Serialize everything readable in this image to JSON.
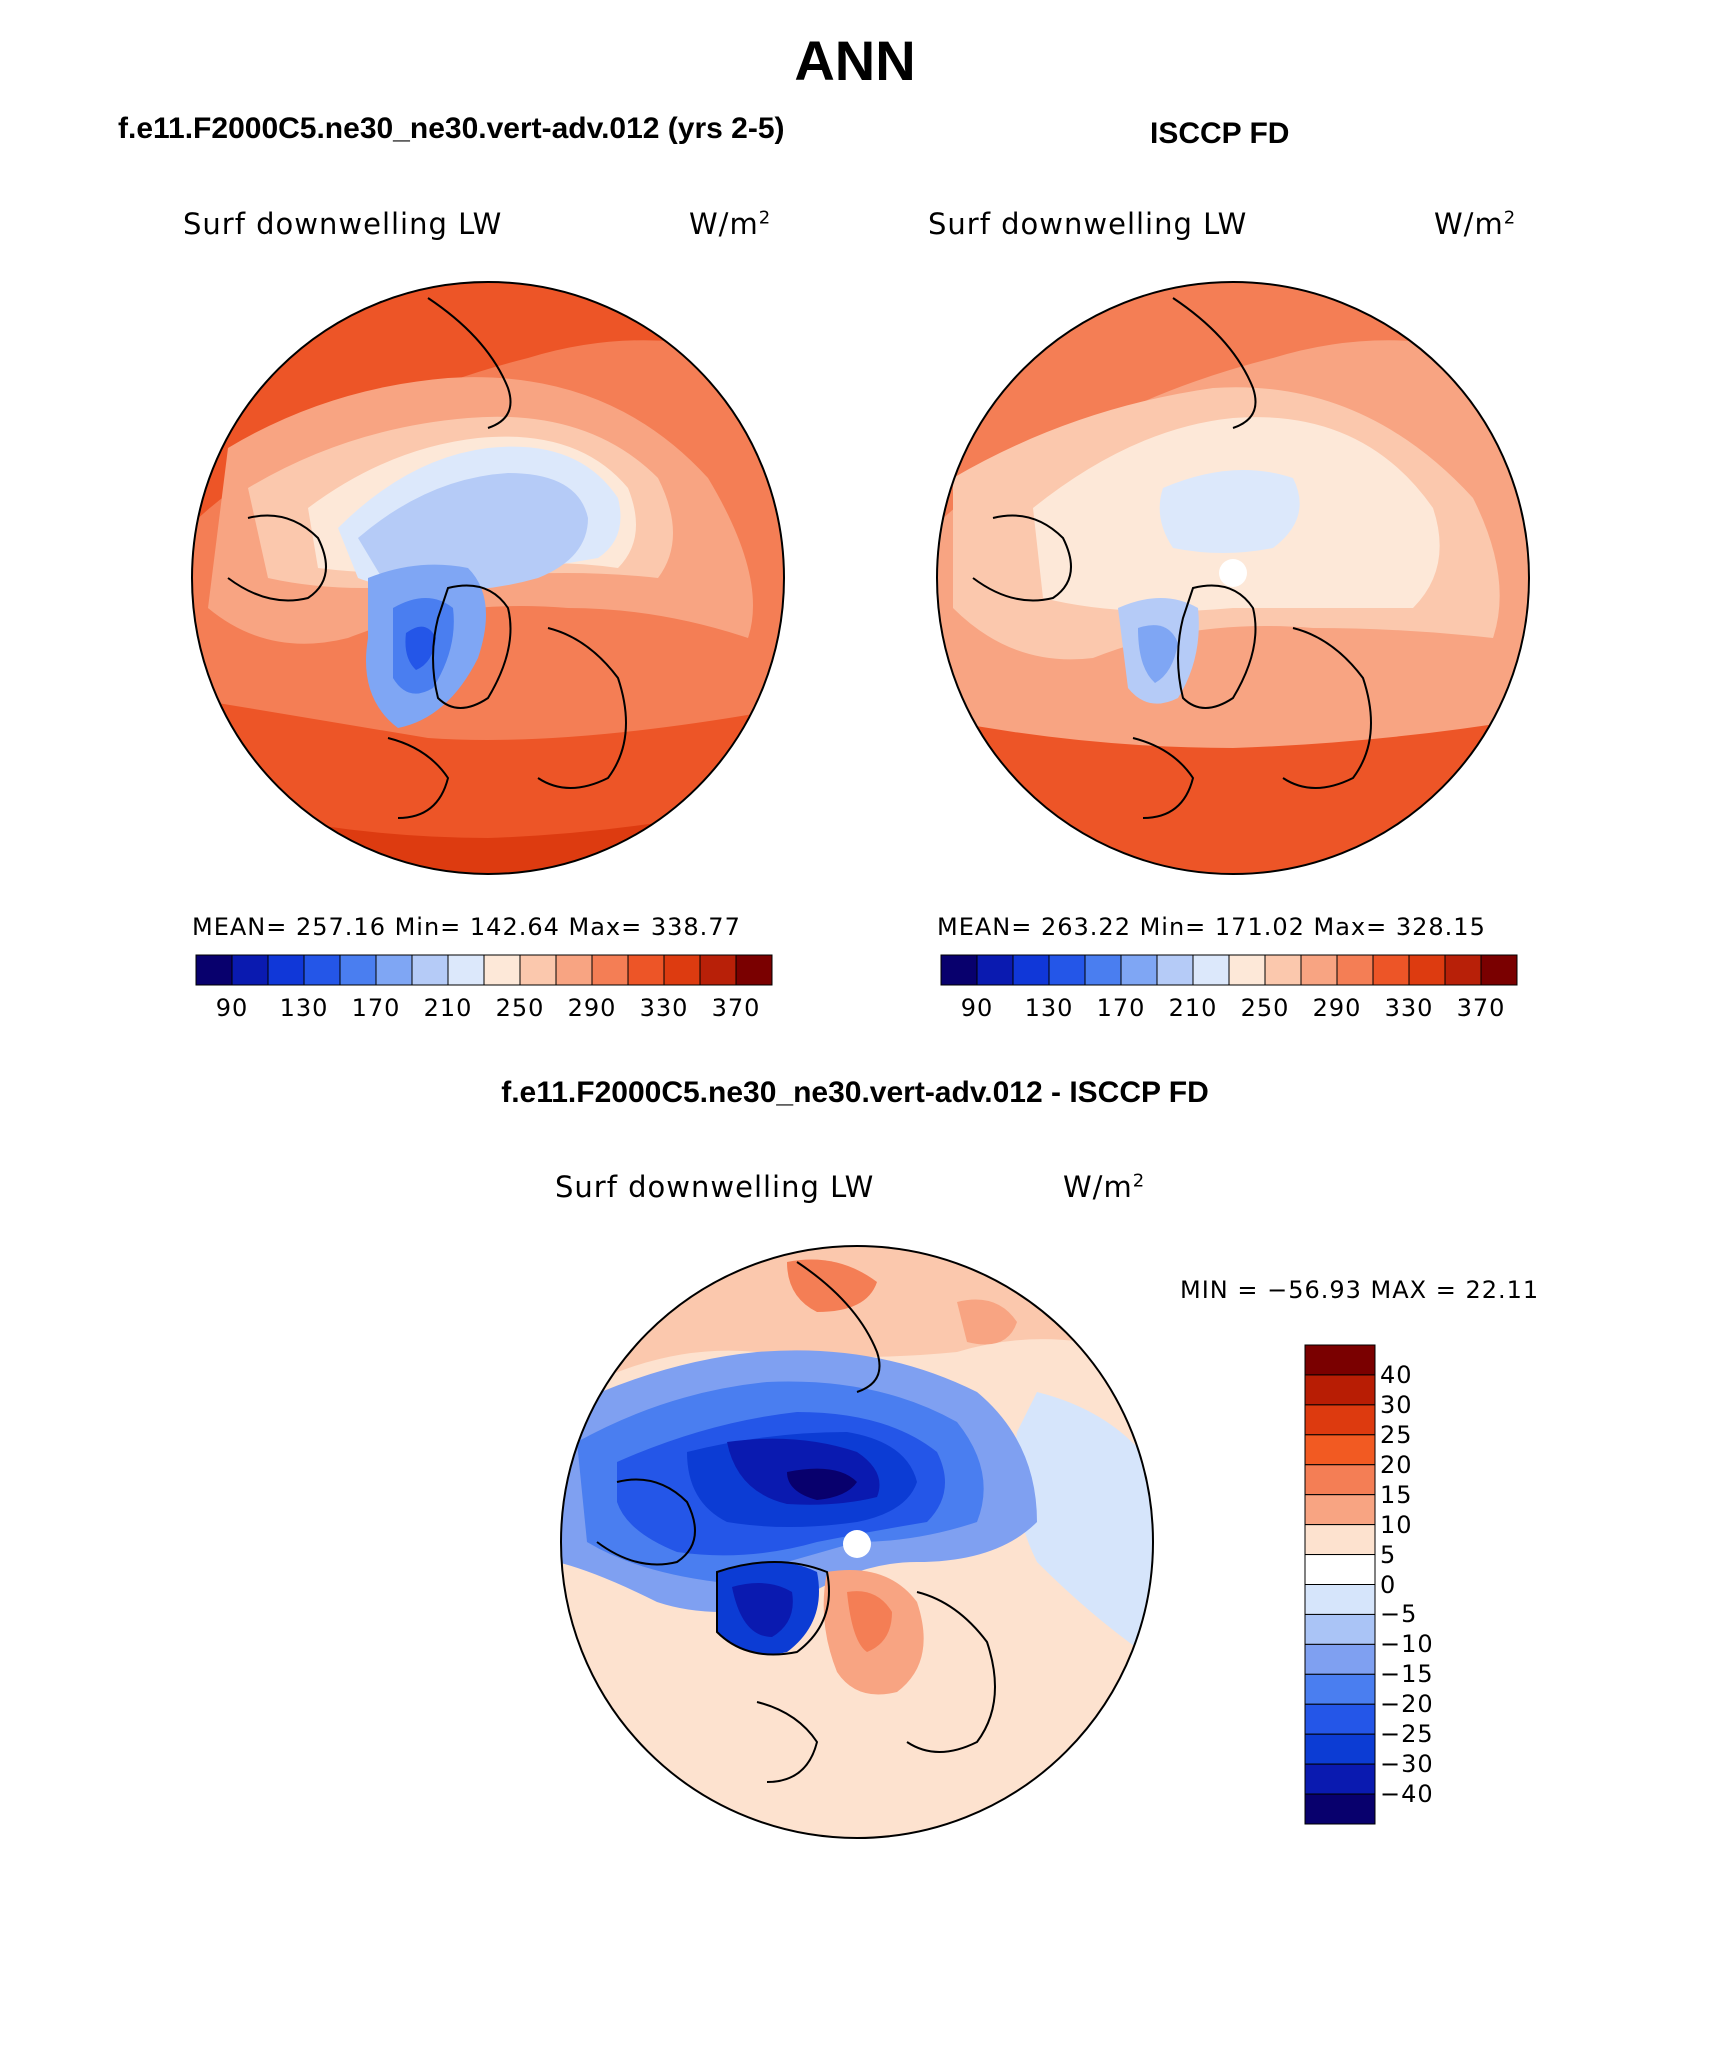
{
  "title": "ANN",
  "panels": [
    {
      "id": "model",
      "header": "f.e11.F2000C5.ne30_ne30.vert-adv.012 (yrs 2-5)",
      "variable": "Surf downwelling LW",
      "units_base": "W/m",
      "units_sup": "2",
      "stats": "MEAN= 257.16   Min= 142.64   Max= 338.77"
    },
    {
      "id": "obs",
      "header": "ISCCP FD",
      "variable": "Surf downwelling LW",
      "units_base": "W/m",
      "units_sup": "2",
      "stats": "MEAN= 263.22   Min= 171.02   Max= 328.15"
    },
    {
      "id": "diff",
      "header": "f.e11.F2000C5.ne30_ne30.vert-adv.012 - ISCCP FD",
      "variable": "Surf downwelling LW",
      "units_base": "W/m",
      "units_sup": "2",
      "stats": "MIN = −56.93 MAX =   22.11"
    }
  ],
  "colorbar_abs": {
    "colors": [
      "#08006d",
      "#0a1ab0",
      "#1037d8",
      "#2456e8",
      "#4a7ef0",
      "#7fa6f4",
      "#b5cbf7",
      "#dce8fb",
      "#fde8d8",
      "#fbc8ad",
      "#f8a482",
      "#f47e55",
      "#ed5527",
      "#dd3b10",
      "#b82008",
      "#7a0000"
    ],
    "labels": [
      "90",
      "130",
      "170",
      "210",
      "250",
      "290",
      "330",
      "370"
    ]
  },
  "colorbar_diff": {
    "colors": [
      "#7a0000",
      "#b81d04",
      "#dd3a0f",
      "#f25a22",
      "#f47e55",
      "#f8a482",
      "#fde2cf",
      "#ffffff",
      "#d6e5fb",
      "#aac4f6",
      "#7fa0f1",
      "#4a7ef0",
      "#2456e8",
      "#0c3cd4",
      "#0a1ab0",
      "#08006d"
    ],
    "labels": [
      "40",
      "30",
      "25",
      "20",
      "15",
      "10",
      "5",
      "0",
      "−5",
      "−10",
      "−15",
      "−20",
      "−25",
      "−30",
      "−40"
    ]
  }
}
